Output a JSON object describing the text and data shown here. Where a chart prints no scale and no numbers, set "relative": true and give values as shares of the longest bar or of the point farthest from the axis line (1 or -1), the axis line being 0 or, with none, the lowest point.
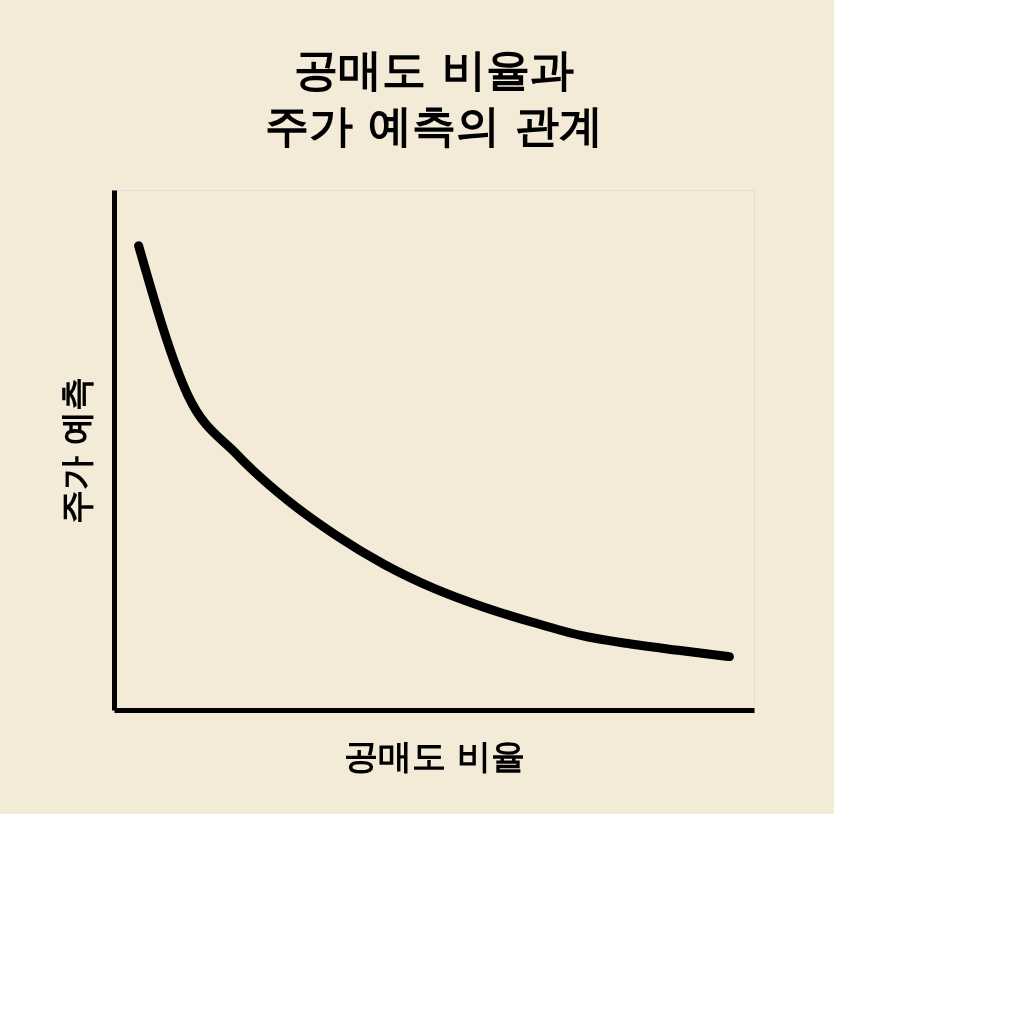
{
  "chart_data": {
    "type": "line",
    "title": "공매도 비율과\n주가 예측의 관계",
    "xlabel": "공매도 비율",
    "ylabel": "주가 예측",
    "relative": true,
    "categories": [
      null,
      null,
      null,
      null,
      null,
      null,
      null,
      null,
      null,
      null,
      null,
      null,
      null
    ],
    "series": [
      {
        "color": "#000000",
        "values": [
          1,
          0.678,
          0.55,
          0.454,
          0.377,
          0.313,
          0.262,
          0.222,
          0.189,
          0.16,
          0.142,
          0.128,
          0.115
        ]
      }
    ],
    "grid": false,
    "tick_labels": false,
    "line_style": "solid"
  }
}
